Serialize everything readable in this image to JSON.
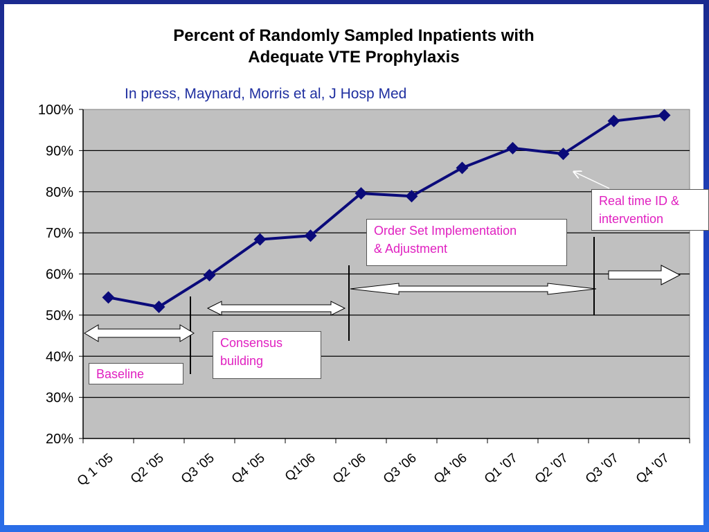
{
  "chart_data": {
    "type": "line",
    "title_lines": [
      "Percent of Randomly Sampled Inpatients with",
      "Adequate VTE Prophylaxis"
    ],
    "subtitle": "In press, Maynard, Morris et al, J Hosp Med",
    "categories": [
      "Q 1 '05",
      "Q2 '05",
      "Q3 '05",
      "Q4 '05",
      "Q1'06",
      "Q2 '06",
      "Q3 '06",
      "Q4 '06",
      "Q1 '07",
      "Q2 '07",
      "Q3 '07",
      "Q4 '07"
    ],
    "values": [
      54.3,
      52.0,
      59.7,
      68.4,
      69.3,
      79.6,
      78.9,
      85.8,
      90.6,
      89.2,
      97.2,
      98.6
    ],
    "ylim": [
      20,
      100
    ],
    "yticks": [
      "20%",
      "30%",
      "40%",
      "50%",
      "60%",
      "70%",
      "80%",
      "90%",
      "100%"
    ],
    "grid": true,
    "line_color": "#0a0a7a",
    "plot_background": "#c0c0c0",
    "annotations": {
      "baseline": "Baseline",
      "consensus_line1": "Consensus",
      "consensus_line2": "building",
      "order_set_line1": "Order Set Implementation",
      "order_set_line2": "& Adjustment",
      "realtime_line1": "Real time ID &",
      "realtime_line2": "intervention"
    }
  }
}
